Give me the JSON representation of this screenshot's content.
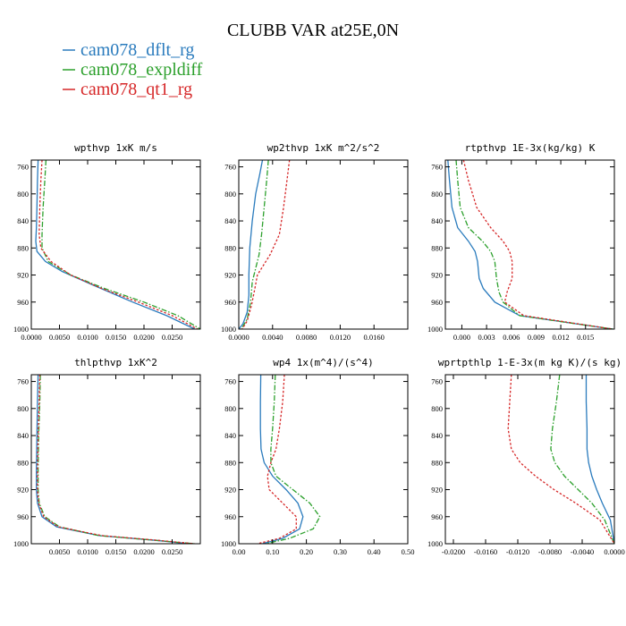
{
  "figure": {
    "title": "CLUBB VAR at25E,0N",
    "legend": [
      {
        "label": "cam078_dflt_rg",
        "color": "#2a7bbd"
      },
      {
        "label": "cam078_expldiff",
        "color": "#2ca02c"
      },
      {
        "label": "cam078_qt1_rg",
        "color": "#d62728"
      }
    ]
  },
  "chart_data": [
    {
      "type": "line",
      "title": "wpthvp  1xK m/s",
      "ylim": [
        1000,
        750
      ],
      "xlim": [
        0,
        0.03
      ],
      "xticks": [
        0.0,
        0.005,
        0.01,
        0.015,
        0.02,
        0.025
      ],
      "xtick_labels": [
        "0.0000",
        "0.0050",
        "0.0100",
        "0.0150",
        "0.0200",
        "0.0250"
      ],
      "yticks": [
        760,
        800,
        840,
        880,
        920,
        960,
        1000
      ],
      "ytick_labels": [
        "760",
        "800",
        "840",
        "880",
        "920",
        "960",
        "1000"
      ],
      "series": [
        {
          "name": "cam078_dflt_rg",
          "x": [
            0.0012,
            0.0011,
            0.001,
            0.0009,
            0.0008,
            0.001,
            0.0025,
            0.0055,
            0.011,
            0.018,
            0.024,
            0.029
          ],
          "y": [
            750,
            780,
            820,
            850,
            870,
            885,
            900,
            915,
            935,
            960,
            980,
            1000
          ]
        },
        {
          "name": "cam078_expldiff",
          "x": [
            0.0026,
            0.0024,
            0.0021,
            0.0019,
            0.0019,
            0.003,
            0.007,
            0.013,
            0.02,
            0.026,
            0.03
          ],
          "y": [
            750,
            780,
            820,
            860,
            880,
            900,
            920,
            940,
            960,
            980,
            1000
          ]
        },
        {
          "name": "cam078_qt1_rg",
          "x": [
            0.0019,
            0.0017,
            0.0015,
            0.0014,
            0.0017,
            0.0035,
            0.007,
            0.0125,
            0.019,
            0.025,
            0.0295
          ],
          "y": [
            750,
            780,
            820,
            860,
            880,
            900,
            920,
            940,
            960,
            980,
            1000
          ]
        }
      ]
    },
    {
      "type": "line",
      "title": "wp2thvp  1xK m^2/s^2",
      "ylim": [
        1000,
        750
      ],
      "xlim": [
        0,
        0.02
      ],
      "xticks": [
        0.0,
        0.004,
        0.008,
        0.012,
        0.016
      ],
      "xtick_labels": [
        "0.0000",
        "0.0040",
        "0.0080",
        "0.0120",
        "0.0160"
      ],
      "yticks": [
        760,
        800,
        840,
        880,
        920,
        960,
        1000
      ],
      "ytick_labels": [
        "760",
        "800",
        "840",
        "880",
        "920",
        "960",
        "1000"
      ],
      "series": [
        {
          "name": "cam078_dflt_rg",
          "x": [
            0.0028,
            0.0025,
            0.002,
            0.0016,
            0.0013,
            0.0012,
            0.0012,
            0.001,
            0.0005,
            0.0
          ],
          "y": [
            750,
            770,
            800,
            840,
            880,
            920,
            950,
            975,
            992,
            1000
          ]
        },
        {
          "name": "cam078_expldiff",
          "x": [
            0.0035,
            0.0033,
            0.003,
            0.0027,
            0.0024,
            0.002,
            0.0016,
            0.0014,
            0.001,
            0.0003
          ],
          "y": [
            750,
            780,
            820,
            860,
            890,
            910,
            930,
            960,
            985,
            1000
          ]
        },
        {
          "name": "cam078_qt1_rg",
          "x": [
            0.006,
            0.0057,
            0.0053,
            0.0048,
            0.0037,
            0.0022,
            0.0019,
            0.0015,
            0.001,
            0.0004
          ],
          "y": [
            750,
            780,
            820,
            860,
            890,
            920,
            940,
            965,
            988,
            1000
          ]
        }
      ]
    },
    {
      "type": "line",
      "title": "rtpthvp  1E-3x(kg/kg) K",
      "ylim": [
        1000,
        750
      ],
      "xlim": [
        -0.002,
        0.0185
      ],
      "xticks": [
        0.0,
        0.003,
        0.006,
        0.009,
        0.012,
        0.015
      ],
      "xtick_labels": [
        "0.000",
        "0.003",
        "0.006",
        "0.009",
        "0.012",
        "0.015"
      ],
      "yticks": [
        760,
        800,
        840,
        880,
        920,
        960,
        1000
      ],
      "ytick_labels": [
        "760",
        "800",
        "840",
        "880",
        "920",
        "960",
        "1000"
      ],
      "series": [
        {
          "name": "cam078_dflt_rg",
          "x": [
            -0.0017,
            -0.0015,
            -0.0012,
            -0.0005,
            0.0008,
            0.0016,
            0.0019,
            0.0021,
            0.0026,
            0.004,
            0.007,
            0.0183
          ],
          "y": [
            750,
            780,
            820,
            850,
            870,
            885,
            900,
            925,
            940,
            960,
            980,
            1000
          ]
        },
        {
          "name": "cam078_expldiff",
          "x": [
            -0.0007,
            -0.0005,
            -0.0002,
            0.0008,
            0.0025,
            0.0035,
            0.004,
            0.0042,
            0.0045,
            0.005,
            0.007,
            0.0183
          ],
          "y": [
            750,
            780,
            820,
            850,
            870,
            885,
            900,
            925,
            945,
            960,
            980,
            1000
          ]
        },
        {
          "name": "cam078_qt1_rg",
          "x": [
            0.0002,
            0.0008,
            0.0018,
            0.0035,
            0.005,
            0.0058,
            0.0061,
            0.0061,
            0.0055,
            0.0052,
            0.0075,
            0.0183
          ],
          "y": [
            750,
            780,
            820,
            850,
            870,
            885,
            900,
            925,
            945,
            960,
            980,
            1000
          ]
        }
      ]
    },
    {
      "type": "line",
      "title": "thlpthvp  1xK^2",
      "ylim": [
        1000,
        750
      ],
      "xlim": [
        0,
        0.03
      ],
      "xticks": [
        0.005,
        0.01,
        0.015,
        0.02,
        0.025
      ],
      "xtick_labels": [
        "0.0050",
        "0.0100",
        "0.0150",
        "0.0200",
        "0.0250"
      ],
      "yticks": [
        760,
        800,
        840,
        880,
        920,
        960,
        1000
      ],
      "ytick_labels": [
        "760",
        "800",
        "840",
        "880",
        "920",
        "960",
        "1000"
      ],
      "series": [
        {
          "name": "cam078_dflt_rg",
          "x": [
            0.0012,
            0.0011,
            0.001,
            0.0009,
            0.0009,
            0.0011,
            0.0019,
            0.0045,
            0.012,
            0.022,
            0.028
          ],
          "y": [
            750,
            790,
            840,
            890,
            920,
            940,
            960,
            975,
            988,
            995,
            1000
          ]
        },
        {
          "name": "cam078_expldiff",
          "x": [
            0.0016,
            0.0015,
            0.0013,
            0.0012,
            0.0012,
            0.0014,
            0.0024,
            0.005,
            0.012,
            0.022,
            0.029
          ],
          "y": [
            750,
            790,
            840,
            890,
            920,
            940,
            960,
            975,
            988,
            995,
            1000
          ]
        },
        {
          "name": "cam078_qt1_rg",
          "x": [
            0.0015,
            0.0014,
            0.0012,
            0.0011,
            0.0011,
            0.0013,
            0.0022,
            0.0048,
            0.0125,
            0.0225,
            0.029
          ],
          "y": [
            750,
            790,
            840,
            890,
            920,
            940,
            960,
            975,
            988,
            995,
            1000
          ]
        }
      ]
    },
    {
      "type": "line",
      "title": "wp4  1x(m^4)/(s^4)",
      "ylim": [
        1000,
        750
      ],
      "xlim": [
        0,
        0.5
      ],
      "xticks": [
        0.0,
        0.1,
        0.2,
        0.3,
        0.4,
        0.5
      ],
      "xtick_labels": [
        "0.00",
        "0.10",
        "0.20",
        "0.30",
        "0.40",
        "0.50"
      ],
      "yticks": [
        760,
        800,
        840,
        880,
        920,
        960,
        1000
      ],
      "ytick_labels": [
        "760",
        "800",
        "840",
        "880",
        "920",
        "960",
        "1000"
      ],
      "series": [
        {
          "name": "cam078_dflt_rg",
          "x": [
            0.065,
            0.064,
            0.064,
            0.066,
            0.075,
            0.1,
            0.14,
            0.175,
            0.19,
            0.18,
            0.13,
            0.07
          ],
          "y": [
            750,
            790,
            830,
            860,
            880,
            900,
            920,
            940,
            960,
            978,
            992,
            1000
          ]
        },
        {
          "name": "cam078_expldiff",
          "x": [
            0.108,
            0.105,
            0.1,
            0.095,
            0.095,
            0.11,
            0.16,
            0.21,
            0.24,
            0.22,
            0.15,
            0.08
          ],
          "y": [
            750,
            790,
            830,
            860,
            880,
            900,
            920,
            940,
            960,
            978,
            992,
            1000
          ]
        },
        {
          "name": "cam078_qt1_rg",
          "x": [
            0.135,
            0.13,
            0.12,
            0.11,
            0.095,
            0.085,
            0.09,
            0.13,
            0.17,
            0.17,
            0.12,
            0.055
          ],
          "y": [
            750,
            790,
            830,
            860,
            880,
            900,
            920,
            940,
            960,
            978,
            992,
            1000
          ]
        }
      ]
    },
    {
      "type": "line",
      "title": "wprtpthlp  1-E-3x(m kg K)/(s kg)",
      "ylim": [
        1000,
        750
      ],
      "xlim": [
        -0.021,
        0.0
      ],
      "xticks": [
        -0.02,
        -0.016,
        -0.012,
        -0.008,
        -0.004,
        0.0
      ],
      "xtick_labels": [
        "-0.0200",
        "-0.0160",
        "-0.0120",
        "-0.0080",
        "-0.0040",
        "0.0000"
      ],
      "yticks": [
        760,
        800,
        840,
        880,
        920,
        960,
        1000
      ],
      "ytick_labels": [
        "760",
        "800",
        "840",
        "880",
        "920",
        "960",
        "1000"
      ],
      "series": [
        {
          "name": "cam078_dflt_rg",
          "x": [
            -0.0035,
            -0.0035,
            -0.0034,
            -0.0034,
            -0.0032,
            -0.0028,
            -0.0022,
            -0.0015,
            -0.0005,
            0.0
          ],
          "y": [
            750,
            790,
            830,
            860,
            880,
            900,
            920,
            940,
            965,
            1000
          ]
        },
        {
          "name": "cam078_expldiff",
          "x": [
            -0.0068,
            -0.0072,
            -0.0077,
            -0.0079,
            -0.0074,
            -0.0062,
            -0.0045,
            -0.0028,
            -0.0012,
            0.0
          ],
          "y": [
            750,
            790,
            830,
            860,
            880,
            900,
            920,
            940,
            965,
            1000
          ]
        },
        {
          "name": "cam078_qt1_rg",
          "x": [
            -0.0128,
            -0.013,
            -0.0132,
            -0.0128,
            -0.0117,
            -0.0098,
            -0.0075,
            -0.0048,
            -0.0018,
            0.0
          ],
          "y": [
            750,
            790,
            830,
            860,
            880,
            900,
            920,
            940,
            965,
            1000
          ]
        }
      ]
    }
  ]
}
